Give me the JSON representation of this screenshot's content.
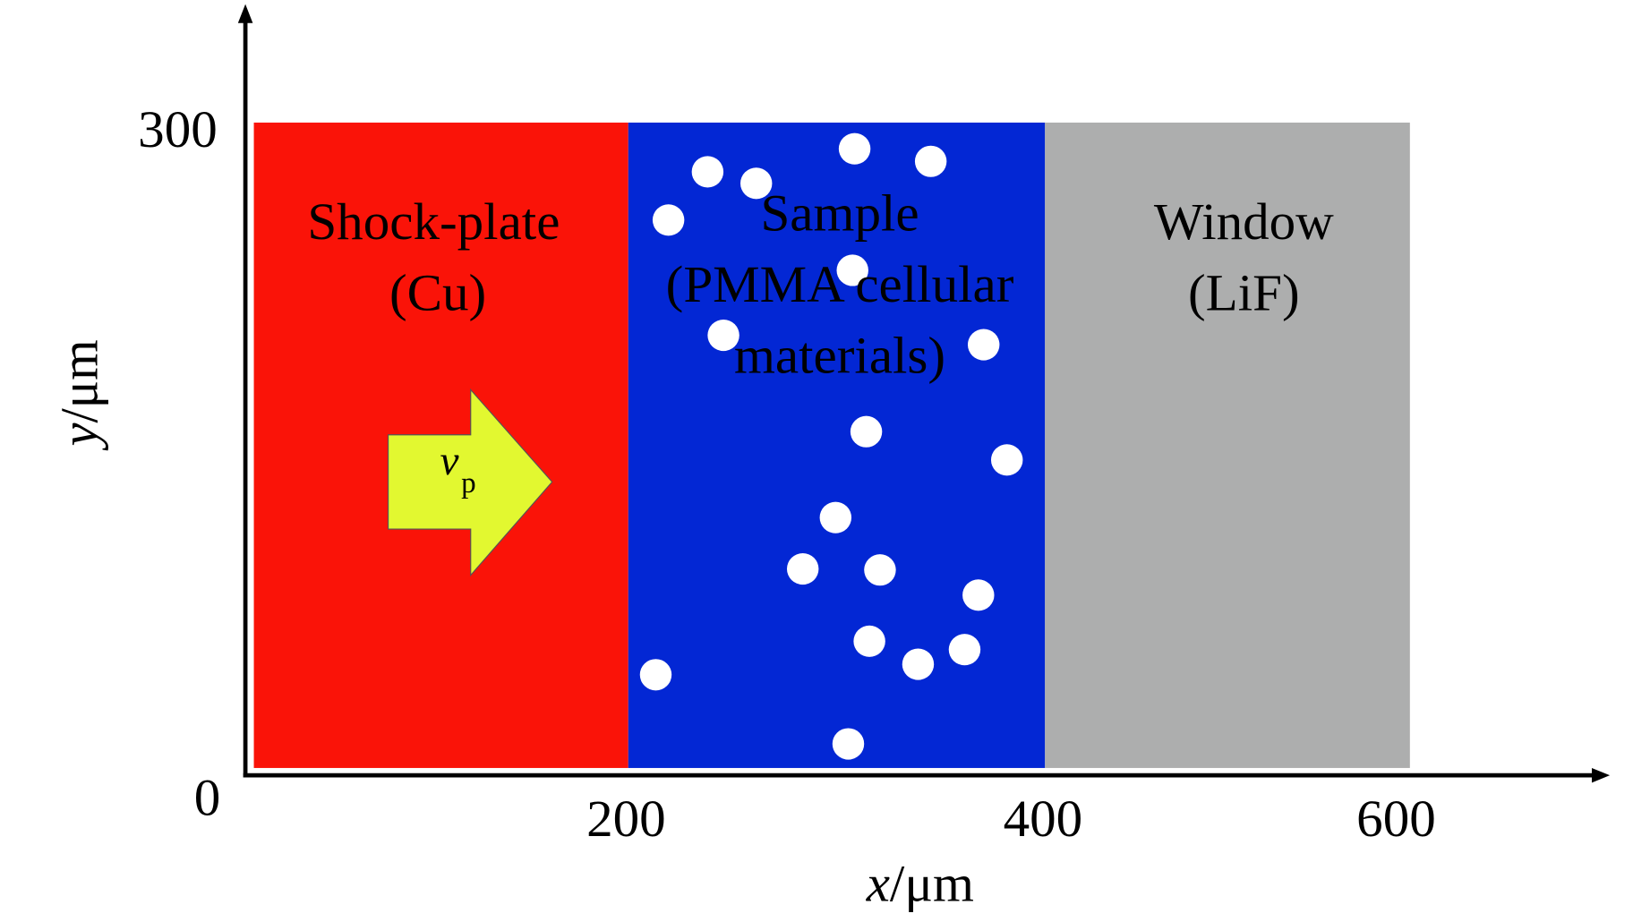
{
  "axes": {
    "x_label": {
      "symbol": "x",
      "unit": "/μm"
    },
    "y_label": {
      "symbol": "y",
      "unit": "/μm"
    },
    "x_ticks": [
      "0",
      "200",
      "400",
      "600"
    ],
    "y_ticks": [
      "300"
    ]
  },
  "regions": [
    {
      "lines": [
        "Shock-plate",
        "(Cu)"
      ]
    },
    {
      "lines": [
        "Sample",
        "(PMMA cellular",
        "materials)"
      ]
    },
    {
      "lines": [
        "Window",
        "(LiF)"
      ]
    }
  ],
  "arrow": {
    "symbol": "v",
    "subscript": "p"
  }
}
